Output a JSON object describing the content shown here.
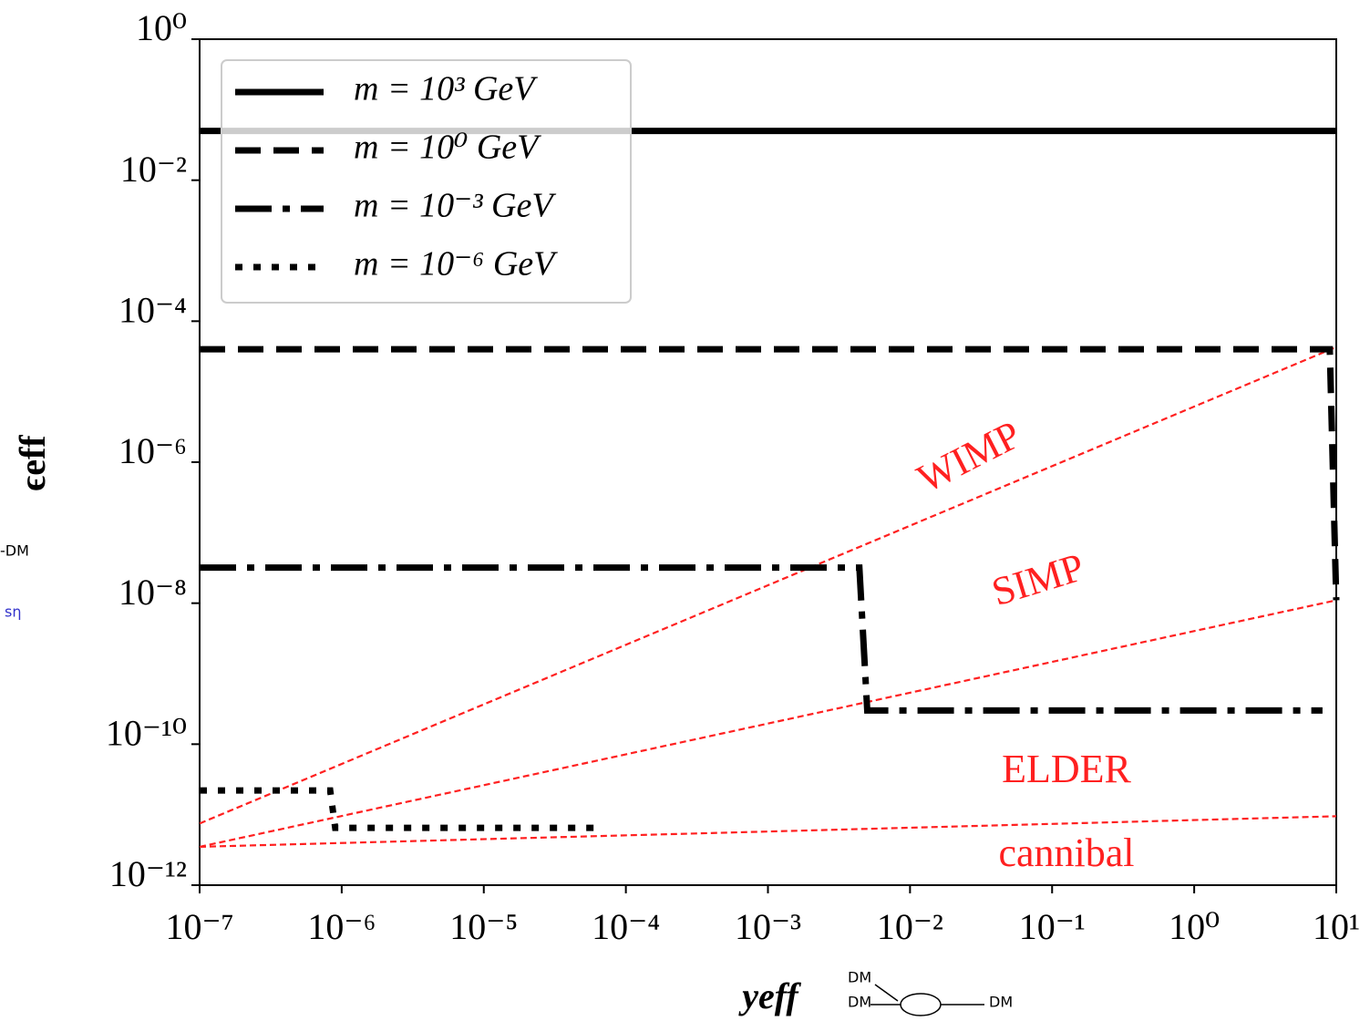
{
  "chart_data": {
    "type": "line",
    "xlabel": "yeff",
    "ylabel": "ϵeff",
    "xscale": "log",
    "yscale": "log",
    "xlim": [
      1e-07,
      10
    ],
    "ylim": [
      1e-12,
      1
    ],
    "xticks": [
      {
        "value": 1e-07,
        "label": "10⁻⁷"
      },
      {
        "value": 1e-06,
        "label": "10⁻⁶"
      },
      {
        "value": 1e-05,
        "label": "10⁻⁵"
      },
      {
        "value": 0.0001,
        "label": "10⁻⁴"
      },
      {
        "value": 0.001,
        "label": "10⁻³"
      },
      {
        "value": 0.01,
        "label": "10⁻²"
      },
      {
        "value": 0.1,
        "label": "10⁻¹"
      },
      {
        "value": 1,
        "label": "10⁰"
      },
      {
        "value": 10,
        "label": "10¹"
      }
    ],
    "yticks": [
      {
        "value": 1e-12,
        "label": "10⁻¹²"
      },
      {
        "value": 1e-10,
        "label": "10⁻¹⁰"
      },
      {
        "value": 1e-08,
        "label": "10⁻⁸"
      },
      {
        "value": 1e-06,
        "label": "10⁻⁶"
      },
      {
        "value": 0.0001,
        "label": "10⁻⁴"
      },
      {
        "value": 0.01,
        "label": "10⁻²"
      },
      {
        "value": 1,
        "label": "10⁰"
      }
    ],
    "legend": "upper left",
    "series": [
      {
        "name": "m = 10³ GeV",
        "color": "#000000",
        "style": "solid",
        "x": [
          1e-07,
          10
        ],
        "values": [
          0.05,
          0.05
        ]
      },
      {
        "name": "m = 10⁰ GeV",
        "color": "#000000",
        "style": "dashed",
        "x": [
          1e-07,
          9,
          10
        ],
        "values": [
          4e-05,
          4e-05,
          1.1e-08
        ]
      },
      {
        "name": "m = 10⁻³ GeV",
        "color": "#000000",
        "style": "dashdot",
        "x": [
          1e-07,
          0.0044,
          0.005,
          8
        ],
        "values": [
          3.2e-08,
          3.2e-08,
          3e-10,
          3e-10
        ]
      },
      {
        "name": "m = 10⁻⁶ GeV",
        "color": "#000000",
        "style": "dotted",
        "x": [
          1e-07,
          8.3e-07,
          9e-07,
          6.6e-05
        ],
        "values": [
          2.2e-11,
          2.2e-11,
          6.5e-12,
          6.5e-12
        ]
      }
    ],
    "boundaries": [
      {
        "color": "#ff2020",
        "x": [
          1e-07,
          10
        ],
        "values": [
          7.5e-12,
          4.3e-05
        ]
      },
      {
        "color": "#ff2020",
        "x": [
          1e-07,
          10
        ],
        "values": [
          3.5e-12,
          1.1e-08
        ]
      },
      {
        "color": "#ff2020",
        "x": [
          1e-07,
          10
        ],
        "values": [
          3.5e-12,
          9.5e-12
        ]
      }
    ],
    "annotations": [
      "WIMP",
      "SIMP",
      "ELDER",
      "cannibal"
    ],
    "handwritten": [
      "-DM",
      "sη",
      "DM",
      "DM",
      "DM"
    ]
  }
}
